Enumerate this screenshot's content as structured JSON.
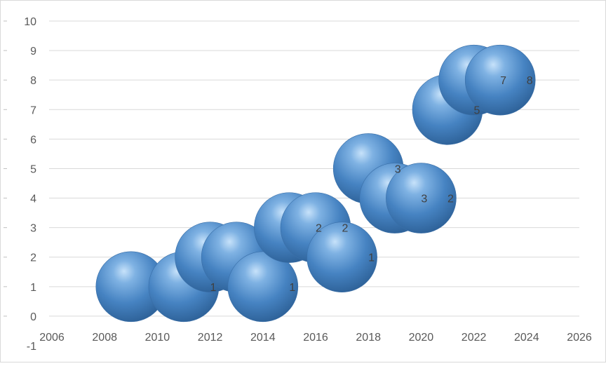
{
  "chart_data": {
    "type": "scatter",
    "subtype": "bubble",
    "title": "",
    "xlabel": "",
    "ylabel": "",
    "xlim": [
      2006,
      2026
    ],
    "ylim": [
      -1,
      10
    ],
    "x_ticks": [
      "2006",
      "2008",
      "2010",
      "2012",
      "2014",
      "2016",
      "2018",
      "2020",
      "2022",
      "2024",
      "2026"
    ],
    "y_ticks": [
      "-1",
      "0",
      "1",
      "2",
      "3",
      "4",
      "5",
      "6",
      "7",
      "8",
      "9",
      "10"
    ],
    "grid": true,
    "legend": "none",
    "bubble_color": "#4a86c8",
    "series": [
      {
        "points": [
          {
            "x": 2009,
            "y": 1,
            "label": ""
          },
          {
            "x": 2011,
            "y": 1,
            "label": "1"
          },
          {
            "x": 2012,
            "y": 2,
            "label": ""
          },
          {
            "x": 2013,
            "y": 2,
            "label": ""
          },
          {
            "x": 2014,
            "y": 1,
            "label": "1"
          },
          {
            "x": 2015,
            "y": 3,
            "label": "2"
          },
          {
            "x": 2016,
            "y": 3,
            "label": "2"
          },
          {
            "x": 2017,
            "y": 2,
            "label": "1"
          },
          {
            "x": 2018,
            "y": 5,
            "label": "3"
          },
          {
            "x": 2019,
            "y": 4,
            "label": "3"
          },
          {
            "x": 2020,
            "y": 4,
            "label": "2"
          },
          {
            "x": 2021,
            "y": 7,
            "label": "5"
          },
          {
            "x": 2022,
            "y": 8,
            "label": "7"
          },
          {
            "x": 2023,
            "y": 8,
            "label": "8"
          }
        ]
      }
    ]
  }
}
